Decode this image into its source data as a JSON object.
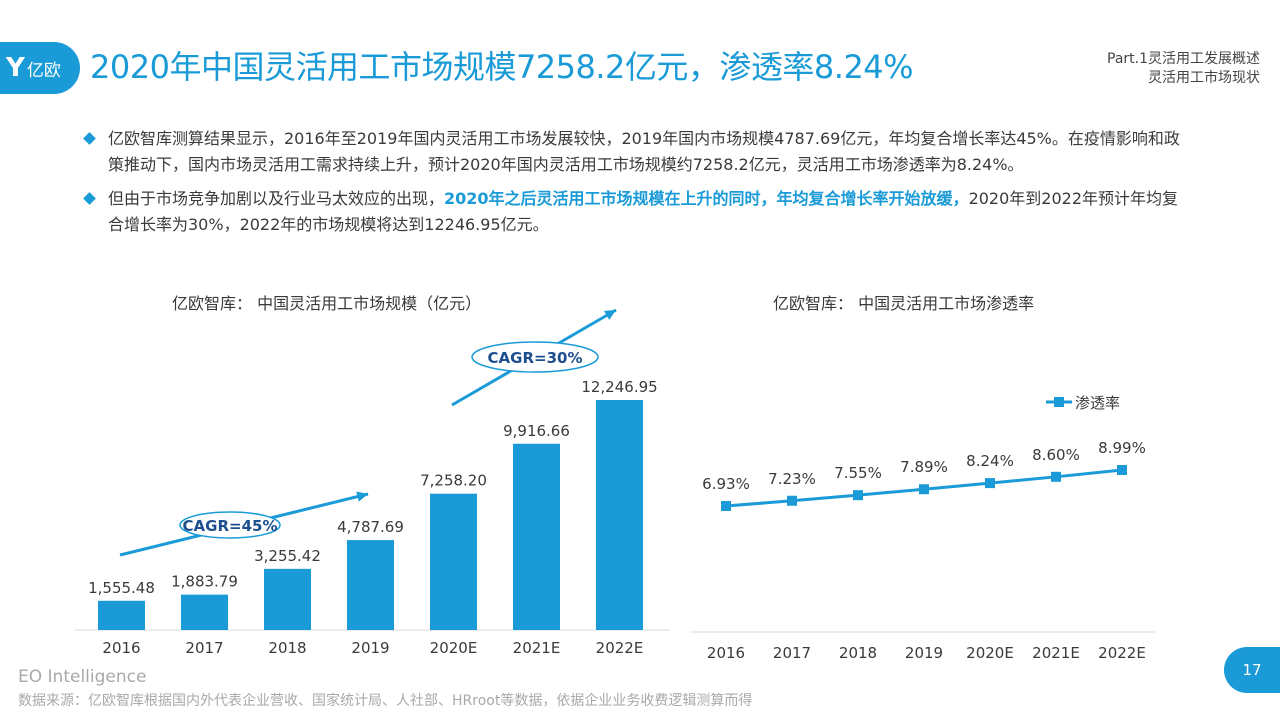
{
  "header": {
    "logo_text": "亿欧",
    "title": "2020年中国灵活用工市场规模7258.2亿元，渗透率8.24%",
    "part_line1": "Part.1灵活用工发展概述",
    "part_line2": "灵活用工市场现状"
  },
  "bullets": {
    "b1": "亿欧智库测算结果显示，2016年至2019年国内灵活用工市场发展较快，2019年国内市场规模4787.69亿元，年均复合增长率达45%。在疫情影响和政策推动下，国内市场灵活用工需求持续上升，预计2020年国内灵活用工市场规模约7258.2亿元，灵活用工市场渗透率为8.24%。",
    "b2_pre": "但由于市场竞争加剧以及行业马太效应的出现，",
    "b2_hl": "2020年之后灵活用工市场规模在上升的同时，年均复合增长率开始放缓，",
    "b2_post": "2020年到2022年预计年均复合增长率为30%，2022年的市场规模将达到12246.95亿元。"
  },
  "colors": {
    "accent": "#1a9bd7",
    "text": "#3a3a3a",
    "muted": "#a9a9a9"
  },
  "chart_data": [
    {
      "type": "bar",
      "title": "亿欧智库：  中国灵活用工市场规模（亿元）",
      "categories": [
        "2016",
        "2017",
        "2018",
        "2019",
        "2020E",
        "2021E",
        "2022E"
      ],
      "values": [
        1555.48,
        1883.79,
        3255.42,
        4787.69,
        7258.2,
        9916.66,
        12246.95
      ],
      "value_labels": [
        "1,555.48",
        "1,883.79",
        "3,255.42",
        "4,787.69",
        "7,258.20",
        "9,916.66",
        "12,246.95"
      ],
      "ylim": [
        0,
        12500
      ],
      "annotations": [
        "CAGR=45%",
        "CAGR=30%"
      ]
    },
    {
      "type": "line",
      "title": "亿欧智库：  中国灵活用工市场渗透率",
      "categories": [
        "2016",
        "2017",
        "2018",
        "2019",
        "2020E",
        "2021E",
        "2022E"
      ],
      "values": [
        6.93,
        7.23,
        7.55,
        7.89,
        8.24,
        8.6,
        8.99
      ],
      "value_labels": [
        "6.93%",
        "7.23%",
        "7.55%",
        "7.89%",
        "8.24%",
        "8.60%",
        "8.99%"
      ],
      "series_name": "渗透率",
      "ylim": [
        0,
        12
      ]
    }
  ],
  "footer": {
    "eo": "EO Intelligence",
    "source": "数据来源：亿欧智库根据国内外代表企业营收、国家统计局、人社部、HRroot等数据，依据企业业务收费逻辑测算而得",
    "page": "17"
  }
}
